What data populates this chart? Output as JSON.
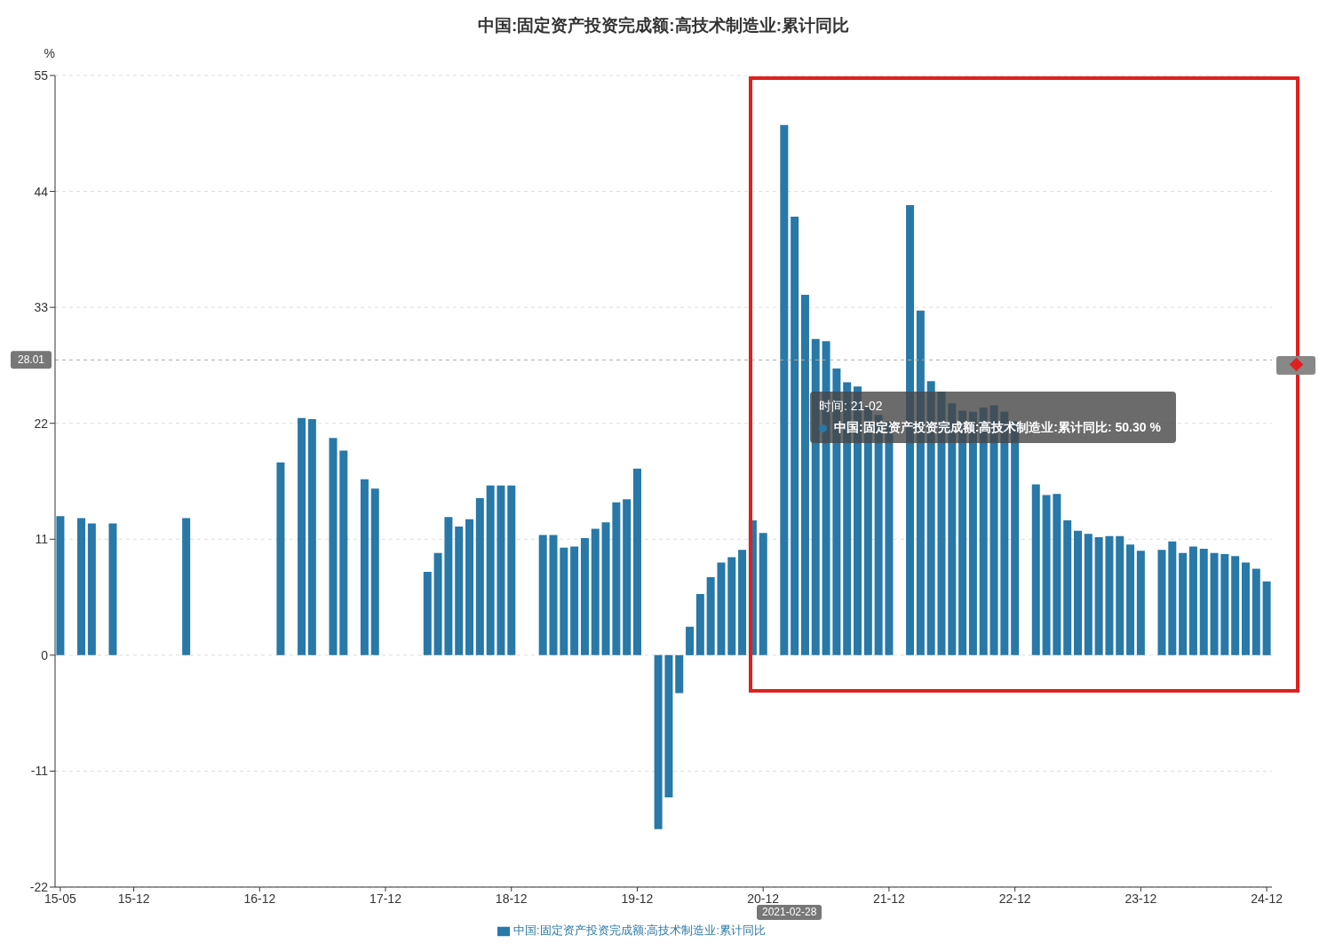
{
  "chart_data": {
    "type": "bar",
    "title": "中国:固定资产投资完成额:高技术制造业:累计同比",
    "ylabel": "%",
    "categories": [
      "15-05",
      null,
      null,
      null,
      null,
      null,
      null,
      "15-12",
      null,
      null,
      null,
      null,
      null,
      null,
      null,
      null,
      null,
      null,
      null,
      "16-12",
      null,
      null,
      null,
      null,
      null,
      null,
      null,
      null,
      null,
      null,
      null,
      "17-12",
      null,
      null,
      null,
      null,
      null,
      null,
      null,
      null,
      null,
      null,
      null,
      "18-12",
      null,
      null,
      null,
      null,
      null,
      null,
      null,
      null,
      null,
      null,
      null,
      "19-12",
      null,
      null,
      null,
      null,
      null,
      null,
      null,
      null,
      null,
      null,
      null,
      "20-12",
      null,
      null,
      null,
      null,
      null,
      null,
      null,
      null,
      null,
      null,
      null,
      "21-12",
      null,
      null,
      null,
      null,
      null,
      null,
      null,
      null,
      null,
      null,
      null,
      "22-12",
      null,
      null,
      null,
      null,
      null,
      null,
      null,
      null,
      null,
      null,
      null,
      "23-12",
      null,
      null,
      null,
      null,
      null,
      null,
      null,
      null,
      null,
      null,
      null,
      "24-12"
    ],
    "series": [
      {
        "name": "中国:固定资产投资完成额:高技术制造业:累计同比",
        "color": "#2878a8",
        "values": [
          13.2,
          null,
          13.0,
          12.5,
          null,
          12.5,
          null,
          null,
          null,
          null,
          null,
          null,
          13.0,
          null,
          null,
          null,
          null,
          null,
          null,
          null,
          null,
          18.3,
          null,
          22.5,
          22.4,
          null,
          20.6,
          19.4,
          null,
          16.7,
          15.8,
          null,
          null,
          null,
          null,
          7.9,
          9.7,
          13.1,
          12.2,
          12.9,
          14.9,
          16.1,
          16.1,
          16.1,
          null,
          null,
          11.4,
          11.4,
          10.2,
          10.3,
          11.1,
          12.0,
          12.6,
          14.5,
          14.8,
          17.7,
          null,
          -16.5,
          -13.5,
          -3.6,
          2.7,
          5.8,
          7.4,
          8.8,
          9.3,
          10.0,
          12.8,
          11.6,
          null,
          50.3,
          41.6,
          34.2,
          30.0,
          29.8,
          27.2,
          25.9,
          25.5,
          23.6,
          22.8,
          22.2,
          null,
          42.7,
          32.7,
          26.0,
          25.0,
          23.9,
          23.2,
          23.1,
          23.5,
          23.7,
          23.1,
          22.2,
          null,
          16.2,
          15.2,
          15.3,
          12.8,
          11.8,
          11.5,
          11.2,
          11.3,
          11.3,
          10.5,
          9.9,
          null,
          10.0,
          10.8,
          9.7,
          10.3,
          10.1,
          9.7,
          9.6,
          9.4,
          8.8,
          8.2,
          7.0
        ]
      }
    ],
    "ylim": [
      -22,
      55
    ],
    "yticks": [
      -22,
      -11,
      0,
      11,
      22,
      33,
      44,
      55
    ],
    "grid": "y",
    "legend": "bottom",
    "ref_lines": [
      {
        "axis": "y",
        "value": 28.01,
        "label": "28.01",
        "line_style": "dashed"
      }
    ],
    "annotations": [
      "时间: 21-02",
      "中国:固定资产投资完成额:高技术制造业:累计同比: 50.30  %",
      "2021-02-28"
    ]
  }
}
